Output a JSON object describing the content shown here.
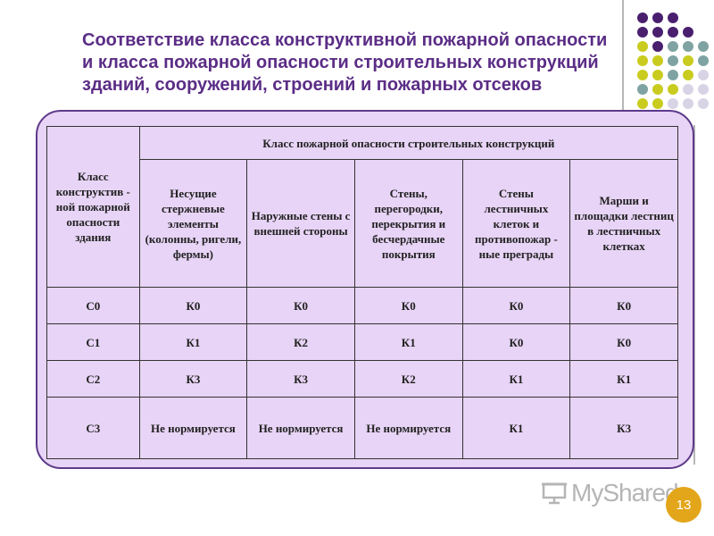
{
  "slide": {
    "title": "Соответствие класса конструктивной пожарной опасности\nи класса  пожарной опасности строительных конструкций\nзданий, сооружений, строений и пожарных отсеков",
    "page_number": "13",
    "logo_text": "MyShared"
  },
  "colors": {
    "title": "#5b2d86",
    "panel_fill": "#e8d4f6",
    "panel_border": "#5d3a8a",
    "dot_purple": "#4a1f6e",
    "dot_olive": "#c9cc1e",
    "dot_teal": "#7fa3a3",
    "dot_light": "#d9d3e6",
    "page_badge": "#e3a61a"
  },
  "table": {
    "header_class": "Класс конструктив - ной пожарной опасности здания",
    "header_group": "Класс пожарной опасности строительных конструкций",
    "sub_headers": [
      "Несущие стержневые элементы (колонны, ригели, фермы)",
      "Наружные стены с внешней стороны",
      "Стены, перегородки, перекрытия и бесчердачные покрытия",
      "Стены лестничных клеток и противопожар - ные преграды",
      "Марши и площадки лестниц в лестничных клетках"
    ],
    "rows": [
      [
        "С0",
        "К0",
        "К0",
        "К0",
        "К0",
        "К0"
      ],
      [
        "С1",
        "К1",
        "К2",
        "К1",
        "К0",
        "К0"
      ],
      [
        "С2",
        "К3",
        "К3",
        "К2",
        "К1",
        "К1"
      ],
      [
        "С3",
        "Не нормируется",
        "Не нормируется",
        "Не нормируется",
        "К1",
        "К3"
      ]
    ]
  }
}
